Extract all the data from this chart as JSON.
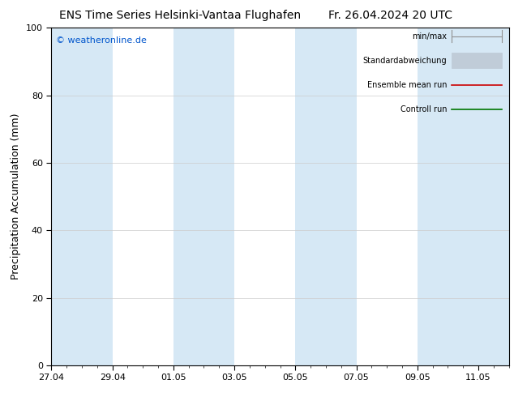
{
  "title_left": "ENS Time Series Helsinki-Vantaa Flughafen",
  "title_right": "Fr. 26.04.2024 20 UTC",
  "ylabel": "Precipitation Accumulation (mm)",
  "watermark": "© weatheronline.de",
  "watermark_color": "#0055cc",
  "ylim": [
    0,
    100
  ],
  "yticks": [
    0,
    20,
    40,
    60,
    80,
    100
  ],
  "xtick_labels": [
    "27.04",
    "29.04",
    "01.05",
    "03.05",
    "05.05",
    "07.05",
    "09.05",
    "11.05"
  ],
  "xtick_positions": [
    0,
    2,
    4,
    6,
    8,
    10,
    12,
    14
  ],
  "total_days": 15,
  "shaded_bands": [
    [
      0,
      2
    ],
    [
      4,
      6
    ],
    [
      8,
      10
    ],
    [
      12,
      15
    ]
  ],
  "shaded_color": "#d6e8f5",
  "bg_color": "#ffffff",
  "grid_color": "#cccccc",
  "legend_items": [
    {
      "label": "min/max",
      "color": "#a0a0a0",
      "type": "minmax"
    },
    {
      "label": "Standardabweichung",
      "color": "#c0ccd8",
      "type": "std"
    },
    {
      "label": "Ensemble mean run",
      "color": "#cc0000",
      "type": "line"
    },
    {
      "label": "Controll run",
      "color": "#007700",
      "type": "line"
    }
  ],
  "title_fontsize": 10,
  "tick_fontsize": 8,
  "ylabel_fontsize": 9,
  "watermark_fontsize": 8,
  "legend_fontsize": 7
}
